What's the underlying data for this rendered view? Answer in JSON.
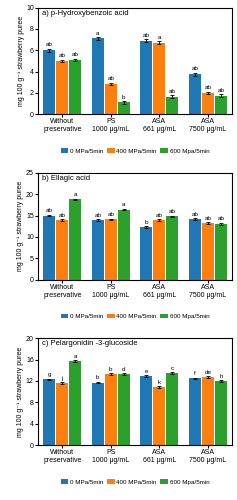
{
  "chart_data": [
    {
      "type": "bar",
      "title": "a) p-Hydroxybenzoic acid",
      "ylabel": "mg 100 g⁻¹ strawberry puree",
      "categories": [
        "Without\npreservative",
        "PS\n1000 μg/mL",
        "ASA\n661 μg/mL",
        "ASA\n7500 μg/mL"
      ],
      "ylim": [
        0,
        10
      ],
      "yticks": [
        0,
        2,
        4,
        6,
        8,
        10
      ],
      "legend": "lower center",
      "series": [
        {
          "name": "0 MPa/5min",
          "values": [
            6.0,
            7.1,
            6.9,
            3.75
          ],
          "errors": [
            0.15,
            0.12,
            0.15,
            0.15
          ],
          "letters": [
            "ab",
            "a",
            "ab",
            "ab"
          ]
        },
        {
          "name": "400 MPa/5min",
          "values": [
            5.0,
            2.85,
            6.7,
            2.0
          ],
          "errors": [
            0.12,
            0.12,
            0.15,
            0.12
          ],
          "letters": [
            "ab",
            "ab",
            "a",
            "ab"
          ]
        },
        {
          "name": "600 Mpa/5min",
          "values": [
            5.1,
            1.1,
            1.65,
            1.75
          ],
          "errors": [
            0.12,
            0.1,
            0.12,
            0.12
          ],
          "letters": [
            "ab",
            "b",
            "ab",
            "ab"
          ]
        }
      ]
    },
    {
      "type": "bar",
      "title": "b) Ellagic acid",
      "ylabel": "mg 100 g⁻¹ strawberry puree",
      "categories": [
        "Without\npreservative",
        "PS\n1000 μg/mL",
        "ASA\n661 μg/mL",
        "ASA\n7500 μg/mL"
      ],
      "ylim": [
        0,
        25
      ],
      "yticks": [
        0,
        5,
        10,
        15,
        20,
        25
      ],
      "legend": "lower center",
      "series": [
        {
          "name": "0 MPa/5min",
          "values": [
            15.0,
            13.9,
            12.3,
            14.2
          ],
          "errors": [
            0.2,
            0.2,
            0.2,
            0.2
          ],
          "letters": [
            "ab",
            "ab",
            "b",
            "ab"
          ]
        },
        {
          "name": "400 MPa/5min",
          "values": [
            14.0,
            14.1,
            14.0,
            13.2
          ],
          "errors": [
            0.2,
            0.2,
            0.2,
            0.2
          ],
          "letters": [
            "ab",
            "ab",
            "ab",
            "ab"
          ]
        },
        {
          "name": "600 Mpa/5min",
          "values": [
            18.8,
            16.4,
            14.8,
            13.1
          ],
          "errors": [
            0.2,
            0.2,
            0.2,
            0.2
          ],
          "letters": [
            "a",
            "a",
            "ab",
            "ab"
          ]
        }
      ]
    },
    {
      "type": "bar",
      "title": "c) Pelargonidin -3-glucoside",
      "ylabel": "mg 100 g⁻¹ strawberry puree",
      "categories": [
        "Without\npreservative",
        "PS\n1000 μg/mL",
        "ASA\n661 μg/mL",
        "ASA\n7500 μg/mL"
      ],
      "ylim": [
        0,
        20
      ],
      "yticks": [
        0,
        4,
        8,
        12,
        16,
        20
      ],
      "legend": "lower center",
      "series": [
        {
          "name": "0 MPa/5min",
          "values": [
            12.3,
            11.7,
            12.9,
            12.5
          ],
          "errors": [
            0.15,
            0.15,
            0.15,
            0.15
          ],
          "letters": [
            "g",
            "b",
            "e",
            "f"
          ]
        },
        {
          "name": "400 MPa/5min",
          "values": [
            11.6,
            13.3,
            10.9,
            12.8
          ],
          "errors": [
            0.15,
            0.15,
            0.15,
            0.15
          ],
          "letters": [
            "j",
            "b",
            "k",
            "de"
          ]
        },
        {
          "name": "600 Mpa/5min",
          "values": [
            15.7,
            13.3,
            13.5,
            12.0
          ],
          "errors": [
            0.15,
            0.15,
            0.15,
            0.15
          ],
          "letters": [
            "a",
            "d",
            "c",
            "h"
          ]
        }
      ]
    }
  ]
}
